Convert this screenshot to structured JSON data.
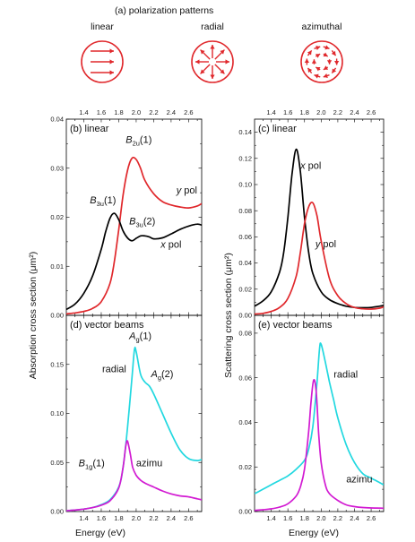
{
  "header": {
    "title": "(a) polarization patterns",
    "patterns": [
      "linear",
      "radial",
      "azimuthal"
    ]
  },
  "colors": {
    "red": "#e0282c",
    "black": "#000000",
    "cyan": "#22d8e0",
    "magenta": "#d21ad2"
  },
  "axes": {
    "xlabel": "Energy (eV)",
    "ylabel_left": "Absorption cross section (μm²)",
    "ylabel_right": "Scattering cross section (μm²)"
  },
  "chart_data": [
    {
      "type": "line",
      "panel_label": "(b) linear",
      "xlim": [
        1.2,
        2.75
      ],
      "ylim": [
        0,
        0.04
      ],
      "xticks": [
        "1.4",
        "1.6",
        "1.8",
        "2.0",
        "2.2",
        "2.4",
        "2.6"
      ],
      "yticks": [
        "0.00",
        "0.01",
        "0.02",
        "0.03",
        "0.04"
      ],
      "series": [
        {
          "name": "y pol",
          "color": "red",
          "x": [
            1.2,
            1.3,
            1.4,
            1.5,
            1.6,
            1.7,
            1.75,
            1.8,
            1.85,
            1.9,
            1.95,
            2.0,
            2.05,
            2.1,
            2.2,
            2.3,
            2.4,
            2.5,
            2.6,
            2.7,
            2.75
          ],
          "y": [
            0.0003,
            0.0005,
            0.0008,
            0.0014,
            0.0028,
            0.0065,
            0.011,
            0.0175,
            0.0245,
            0.0295,
            0.032,
            0.0318,
            0.03,
            0.0275,
            0.0248,
            0.0232,
            0.0225,
            0.0221,
            0.0219,
            0.0223,
            0.0228
          ]
        },
        {
          "name": "x pol",
          "color": "black",
          "x": [
            1.2,
            1.3,
            1.4,
            1.5,
            1.6,
            1.65,
            1.7,
            1.75,
            1.8,
            1.85,
            1.9,
            1.95,
            2.0,
            2.05,
            2.1,
            2.15,
            2.2,
            2.3,
            2.4,
            2.5,
            2.6,
            2.7,
            2.75
          ],
          "y": [
            0.0012,
            0.0023,
            0.0045,
            0.008,
            0.0135,
            0.017,
            0.0198,
            0.0208,
            0.0195,
            0.0172,
            0.0158,
            0.0152,
            0.0157,
            0.0162,
            0.0162,
            0.016,
            0.0156,
            0.0158,
            0.0166,
            0.0175,
            0.0182,
            0.0186,
            0.0184
          ]
        }
      ],
      "annotations": [
        {
          "main": "B",
          "sub": "2u",
          "rest": "(1)",
          "color": "red",
          "x": 1.88,
          "y": 0.0352
        },
        {
          "main": "B",
          "sub": "3u",
          "rest": "(1)",
          "color": "black",
          "x": 1.47,
          "y": 0.0228
        },
        {
          "main": "B",
          "sub": "3u",
          "rest": "(2)",
          "color": "black",
          "x": 1.92,
          "y": 0.0185
        },
        {
          "text": "y pol",
          "color": "red",
          "x": 2.46,
          "y": 0.0248,
          "italic": "y"
        },
        {
          "text": "x pol",
          "color": "black",
          "x": 2.28,
          "y": 0.0138,
          "italic": "x"
        }
      ]
    },
    {
      "type": "line",
      "panel_label": "(c) linear",
      "xlim": [
        1.2,
        2.75
      ],
      "ylim": [
        0,
        0.15
      ],
      "xticks": [
        "1.4",
        "1.6",
        "1.8",
        "2.0",
        "2.2",
        "2.4",
        "2.6"
      ],
      "yticks": [
        "0.00",
        "0.02",
        "0.04",
        "0.06",
        "0.08",
        "0.10",
        "0.12",
        "0.14"
      ],
      "series": [
        {
          "name": "x pol",
          "color": "black",
          "x": [
            1.2,
            1.3,
            1.4,
            1.5,
            1.55,
            1.6,
            1.65,
            1.7,
            1.75,
            1.8,
            1.85,
            1.9,
            2.0,
            2.1,
            2.2,
            2.3,
            2.4,
            2.5,
            2.6,
            2.7,
            2.75
          ],
          "y": [
            0.007,
            0.011,
            0.018,
            0.033,
            0.048,
            0.075,
            0.108,
            0.127,
            0.11,
            0.075,
            0.048,
            0.032,
            0.018,
            0.012,
            0.009,
            0.007,
            0.006,
            0.0058,
            0.006,
            0.007,
            0.0075
          ]
        },
        {
          "name": "y pol",
          "color": "red",
          "x": [
            1.2,
            1.3,
            1.4,
            1.5,
            1.6,
            1.7,
            1.75,
            1.8,
            1.85,
            1.9,
            1.95,
            2.0,
            2.1,
            2.2,
            2.3,
            2.4,
            2.5,
            2.6,
            2.7,
            2.75
          ],
          "y": [
            0.001,
            0.0015,
            0.003,
            0.006,
            0.013,
            0.03,
            0.048,
            0.07,
            0.083,
            0.086,
            0.076,
            0.057,
            0.028,
            0.015,
            0.009,
            0.006,
            0.005,
            0.0048,
            0.0055,
            0.0065
          ]
        }
      ],
      "annotations": [
        {
          "text": "x pol",
          "color": "black",
          "x": 1.75,
          "y": 0.112,
          "italic": "x"
        },
        {
          "text": "y pol",
          "color": "red",
          "x": 1.93,
          "y": 0.052,
          "italic": "y"
        }
      ]
    },
    {
      "type": "line",
      "panel_label": "(d) vector beams",
      "xlim": [
        1.2,
        2.75
      ],
      "ylim": [
        0,
        0.2
      ],
      "xticks": [
        "1.4",
        "1.6",
        "1.8",
        "2.0",
        "2.2",
        "2.4",
        "2.6"
      ],
      "yticks": [
        "0.00",
        "0.05",
        "0.10",
        "0.15"
      ],
      "series": [
        {
          "name": "radial",
          "color": "cyan",
          "x": [
            1.2,
            1.3,
            1.4,
            1.5,
            1.6,
            1.7,
            1.8,
            1.85,
            1.9,
            1.95,
            1.98,
            2.0,
            2.05,
            2.1,
            2.15,
            2.2,
            2.3,
            2.4,
            2.5,
            2.6,
            2.7,
            2.75
          ],
          "y": [
            0.0008,
            0.0015,
            0.0025,
            0.004,
            0.007,
            0.012,
            0.025,
            0.045,
            0.085,
            0.135,
            0.165,
            0.163,
            0.14,
            0.132,
            0.128,
            0.12,
            0.1,
            0.08,
            0.063,
            0.054,
            0.052,
            0.053
          ]
        },
        {
          "name": "azimu",
          "color": "magenta",
          "x": [
            1.2,
            1.3,
            1.4,
            1.5,
            1.6,
            1.7,
            1.8,
            1.85,
            1.88,
            1.9,
            1.93,
            1.96,
            2.0,
            2.05,
            2.1,
            2.2,
            2.3,
            2.4,
            2.5,
            2.6,
            2.7,
            2.75
          ],
          "y": [
            0.0008,
            0.0015,
            0.0025,
            0.004,
            0.0065,
            0.011,
            0.024,
            0.045,
            0.066,
            0.072,
            0.06,
            0.045,
            0.037,
            0.032,
            0.029,
            0.025,
            0.021,
            0.018,
            0.016,
            0.015,
            0.013,
            0.012
          ]
        }
      ],
      "annotations": [
        {
          "main": "A",
          "sub": "g",
          "rest": "(1)",
          "color": "cyan",
          "x": 1.92,
          "y": 0.176
        },
        {
          "main": "A",
          "sub": "g",
          "rest": "(2)",
          "color": "cyan",
          "x": 2.17,
          "y": 0.137
        },
        {
          "main": "B",
          "sub": "1g",
          "rest": "(1)",
          "color": "magenta",
          "x": 1.34,
          "y": 0.046
        },
        {
          "text": "radial",
          "color": "cyan",
          "x": 1.61,
          "y": 0.142
        },
        {
          "text": "azimu",
          "color": "magenta",
          "x": 2.0,
          "y": 0.046
        }
      ]
    },
    {
      "type": "line",
      "panel_label": "(e) vector beams",
      "xlim": [
        1.2,
        2.75
      ],
      "ylim": [
        0,
        0.088
      ],
      "xticks": [
        "1.4",
        "1.6",
        "1.8",
        "2.0",
        "2.2",
        "2.4",
        "2.6"
      ],
      "yticks": [
        "0.00",
        "0.02",
        "0.04",
        "0.06",
        "0.08"
      ],
      "series": [
        {
          "name": "radial",
          "color": "cyan",
          "x": [
            1.2,
            1.3,
            1.4,
            1.5,
            1.6,
            1.7,
            1.8,
            1.85,
            1.9,
            1.95,
            1.98,
            2.0,
            2.05,
            2.1,
            2.15,
            2.2,
            2.3,
            2.4,
            2.5,
            2.6,
            2.7,
            2.75
          ],
          "y": [
            0.008,
            0.01,
            0.012,
            0.014,
            0.016,
            0.019,
            0.023,
            0.028,
            0.038,
            0.058,
            0.073,
            0.075,
            0.067,
            0.058,
            0.05,
            0.042,
            0.03,
            0.022,
            0.017,
            0.015,
            0.013,
            0.012
          ]
        },
        {
          "name": "azimu",
          "color": "magenta",
          "x": [
            1.2,
            1.3,
            1.4,
            1.5,
            1.6,
            1.7,
            1.75,
            1.8,
            1.85,
            1.88,
            1.91,
            1.94,
            1.97,
            2.0,
            2.05,
            2.1,
            2.2,
            2.3,
            2.4,
            2.5,
            2.6,
            2.75
          ],
          "y": [
            0.0005,
            0.0008,
            0.0012,
            0.002,
            0.0035,
            0.007,
            0.011,
            0.019,
            0.036,
            0.05,
            0.059,
            0.054,
            0.035,
            0.022,
            0.012,
            0.008,
            0.005,
            0.003,
            0.0022,
            0.0018,
            0.0016,
            0.0015
          ]
        }
      ],
      "annotations": [
        {
          "text": "radial",
          "color": "cyan",
          "x": 2.15,
          "y": 0.06
        },
        {
          "text": "azimu",
          "color": "magenta",
          "x": 2.3,
          "y": 0.013
        }
      ]
    }
  ]
}
